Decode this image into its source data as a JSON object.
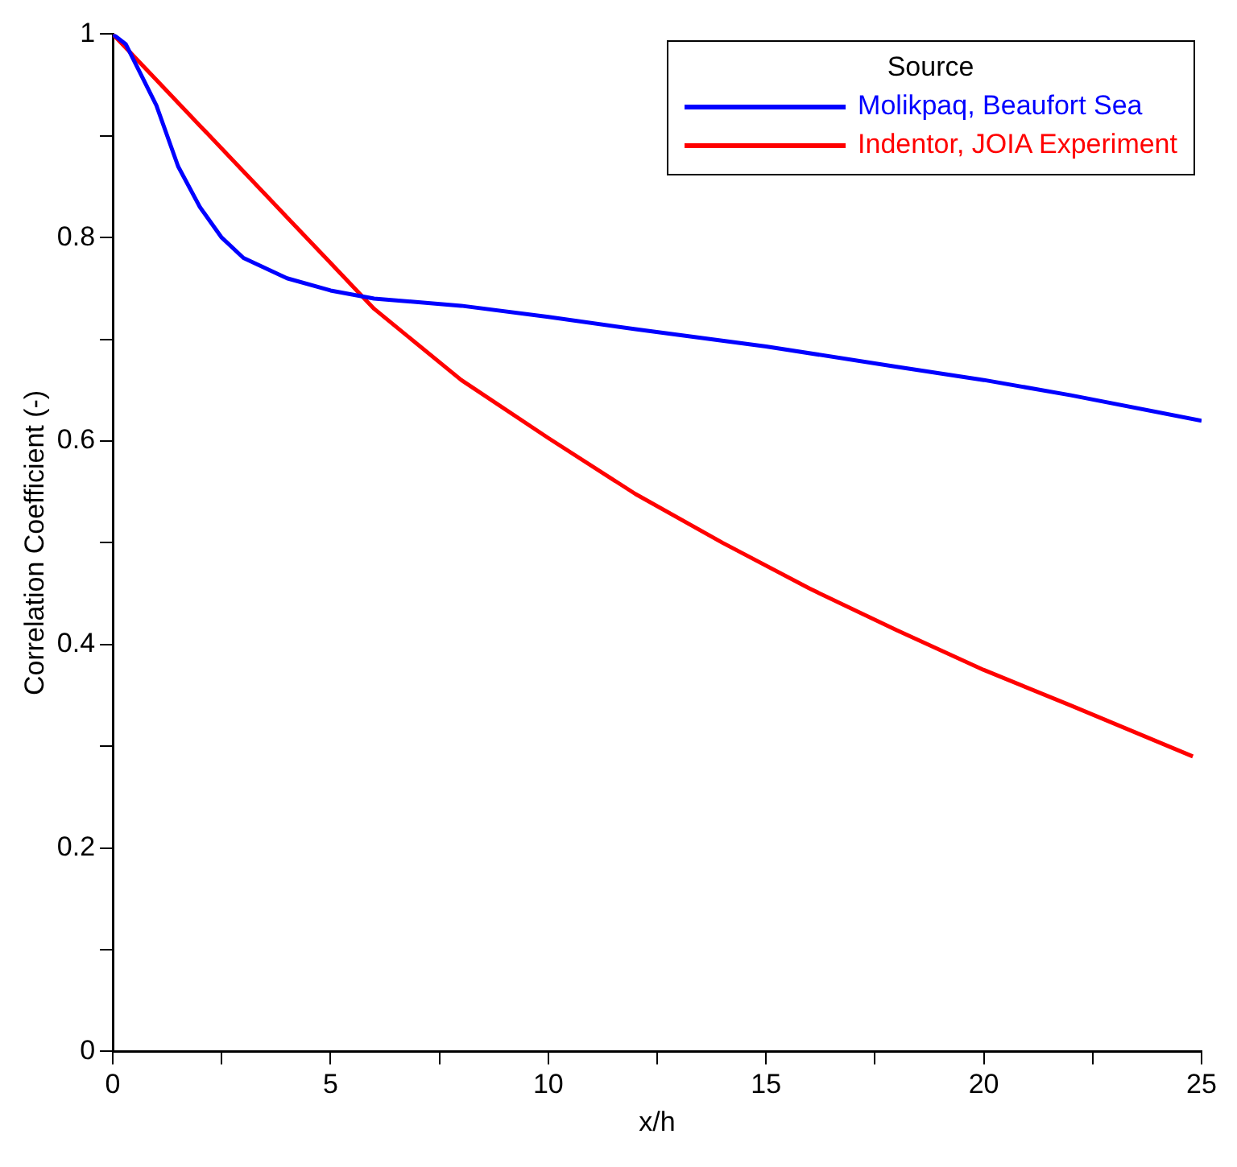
{
  "chart_data": {
    "type": "line",
    "xlabel": "x/h",
    "ylabel": "Correlation Coefficient (-)",
    "legend_title": "Source",
    "legend": "top right",
    "grid": false,
    "marker": "none",
    "line_style": "solid",
    "xlim": [
      0,
      25
    ],
    "xticks": [
      0,
      5,
      10,
      15,
      20,
      25
    ],
    "ylim": [
      0,
      1
    ],
    "yticks": [
      0,
      0.2,
      0.4,
      0.6,
      0.8,
      1
    ],
    "series": [
      {
        "name": "Molikpaq, Beaufort Sea",
        "color": "#0000ff",
        "x": [
          0,
          0.3,
          1,
          1.5,
          2,
          2.5,
          3,
          4,
          5,
          6,
          8,
          10,
          12,
          15,
          18,
          20,
          22,
          25
        ],
        "values": [
          1,
          0.99,
          0.93,
          0.87,
          0.83,
          0.8,
          0.78,
          0.76,
          0.748,
          0.74,
          0.733,
          0.722,
          0.71,
          0.693,
          0.673,
          0.66,
          0.645,
          0.62
        ]
      },
      {
        "name": "Indentor, JOIA Experiment",
        "color": "#ff0000",
        "x": [
          0,
          1,
          2,
          3,
          4,
          5,
          6,
          8,
          10,
          12,
          14,
          16,
          18,
          20,
          22,
          24.8
        ],
        "values": [
          1,
          0.955,
          0.91,
          0.865,
          0.82,
          0.775,
          0.73,
          0.66,
          0.603,
          0.548,
          0.5,
          0.455,
          0.414,
          0.375,
          0.34,
          0.29
        ]
      }
    ]
  }
}
